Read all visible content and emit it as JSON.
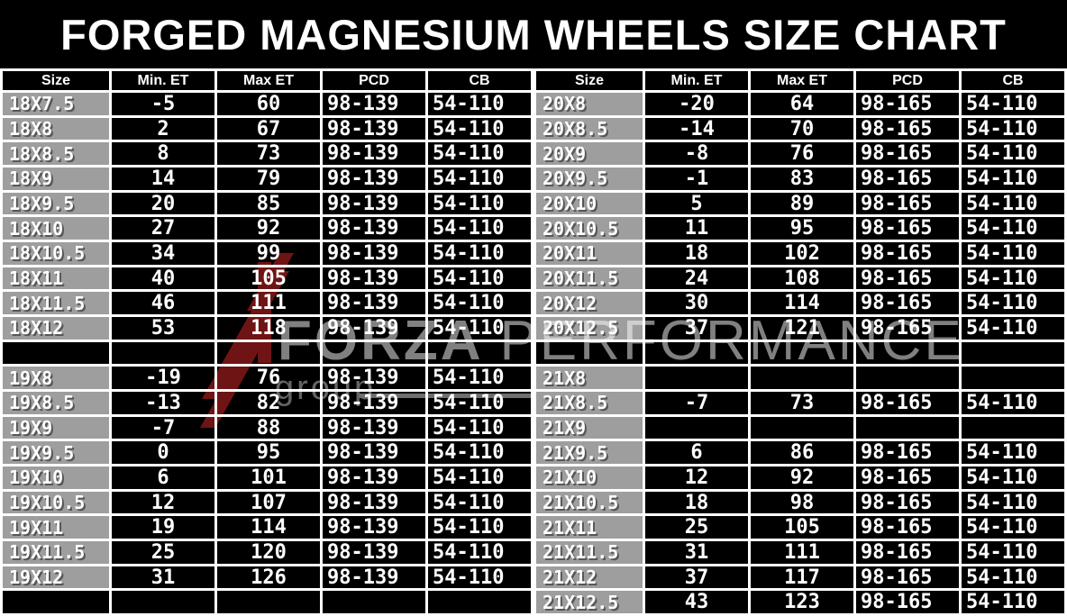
{
  "title": "FORGED MAGNESIUM WHEELS SIZE CHART",
  "watermark": {
    "brand_bold": "FORZA ",
    "brand_light": "PERFORMANCE",
    "sub": "group",
    "logo_color": "#6f1414",
    "text_color": "#808080"
  },
  "colors": {
    "background": "#000000",
    "gridline": "#ffffff",
    "size_cell": "#9e9e9e",
    "data_cell": "#000000",
    "text": "#ffffff"
  },
  "chart_data": {
    "type": "table",
    "title": "FORGED MAGNESIUM WHEELS SIZE CHART",
    "columns": [
      "Size",
      "Min. ET",
      "Max ET",
      "PCD",
      "CB"
    ],
    "tables": [
      {
        "name": "left",
        "rows": [
          [
            "18X7.5",
            "-5",
            "60",
            "98-139",
            "54-110"
          ],
          [
            "18X8",
            "2",
            "67",
            "98-139",
            "54-110"
          ],
          [
            "18X8.5",
            "8",
            "73",
            "98-139",
            "54-110"
          ],
          [
            "18X9",
            "14",
            "79",
            "98-139",
            "54-110"
          ],
          [
            "18X9.5",
            "20",
            "85",
            "98-139",
            "54-110"
          ],
          [
            "18X10",
            "27",
            "92",
            "98-139",
            "54-110"
          ],
          [
            "18X10.5",
            "34",
            "99",
            "98-139",
            "54-110"
          ],
          [
            "18X11",
            "40",
            "105",
            "98-139",
            "54-110"
          ],
          [
            "18X11.5",
            "46",
            "111",
            "98-139",
            "54-110"
          ],
          [
            "18X12",
            "53",
            "118",
            "98-139",
            "54-110"
          ],
          null,
          [
            "19X8",
            "-19",
            "76",
            "98-139",
            "54-110"
          ],
          [
            "19X8.5",
            "-13",
            "82",
            "98-139",
            "54-110"
          ],
          [
            "19X9",
            "-7",
            "88",
            "98-139",
            "54-110"
          ],
          [
            "19X9.5",
            "0",
            "95",
            "98-139",
            "54-110"
          ],
          [
            "19X10",
            "6",
            "101",
            "98-139",
            "54-110"
          ],
          [
            "19X10.5",
            "12",
            "107",
            "98-139",
            "54-110"
          ],
          [
            "19X11",
            "19",
            "114",
            "98-139",
            "54-110"
          ],
          [
            "19X11.5",
            "25",
            "120",
            "98-139",
            "54-110"
          ],
          [
            "19X12",
            "31",
            "126",
            "98-139",
            "54-110"
          ],
          null
        ]
      },
      {
        "name": "right",
        "rows": [
          [
            "20X8",
            "-20",
            "64",
            "98-165",
            "54-110"
          ],
          [
            "20X8.5",
            "-14",
            "70",
            "98-165",
            "54-110"
          ],
          [
            "20X9",
            "-8",
            "76",
            "98-165",
            "54-110"
          ],
          [
            "20X9.5",
            "-1",
            "83",
            "98-165",
            "54-110"
          ],
          [
            "20X10",
            "5",
            "89",
            "98-165",
            "54-110"
          ],
          [
            "20X10.5",
            "11",
            "95",
            "98-165",
            "54-110"
          ],
          [
            "20X11",
            "18",
            "102",
            "98-165",
            "54-110"
          ],
          [
            "20X11.5",
            "24",
            "108",
            "98-165",
            "54-110"
          ],
          [
            "20X12",
            "30",
            "114",
            "98-165",
            "54-110"
          ],
          [
            "20X12.5",
            "37",
            "121",
            "98-165",
            "54-110"
          ],
          null,
          [
            "21X8",
            "",
            "",
            "",
            ""
          ],
          [
            "21X8.5",
            "-7",
            "73",
            "98-165",
            "54-110"
          ],
          [
            "21X9",
            "",
            "",
            "",
            ""
          ],
          [
            "21X9.5",
            "6",
            "86",
            "98-165",
            "54-110"
          ],
          [
            "21X10",
            "12",
            "92",
            "98-165",
            "54-110"
          ],
          [
            "21X10.5",
            "18",
            "98",
            "98-165",
            "54-110"
          ],
          [
            "21X11",
            "25",
            "105",
            "98-165",
            "54-110"
          ],
          [
            "21X11.5",
            "31",
            "111",
            "98-165",
            "54-110"
          ],
          [
            "21X12",
            "37",
            "117",
            "98-165",
            "54-110"
          ],
          [
            "21X12.5",
            "43",
            "123",
            "98-165",
            "54-110"
          ]
        ]
      }
    ]
  }
}
